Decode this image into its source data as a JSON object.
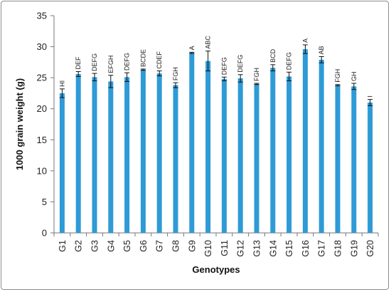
{
  "chart_data": {
    "type": "bar",
    "xlabel": "Genotypes",
    "ylabel": "1000 grain weight (g)",
    "ylim": [
      0,
      35
    ],
    "yticks": [
      0,
      5,
      10,
      15,
      20,
      25,
      30,
      35
    ],
    "grid": false,
    "bar_color": "#2e9bd6",
    "categories": [
      "G1",
      "G2",
      "G3",
      "G4",
      "G5",
      "G6",
      "G7",
      "G8",
      "G9",
      "G10",
      "G11",
      "G12",
      "G13",
      "G14",
      "G15",
      "G16",
      "G17",
      "G18",
      "G19",
      "G20"
    ],
    "values": [
      22.5,
      25.6,
      25.1,
      24.4,
      25.1,
      26.3,
      25.7,
      23.8,
      29.0,
      27.7,
      24.8,
      24.9,
      24.0,
      26.6,
      25.2,
      29.6,
      27.9,
      23.8,
      23.6,
      21.0
    ],
    "errors": [
      0.7,
      0.4,
      0.6,
      1.0,
      0.7,
      0.1,
      0.4,
      0.4,
      0.1,
      1.6,
      0.3,
      0.6,
      0.1,
      0.5,
      0.7,
      0.7,
      0.5,
      0.1,
      0.5,
      0.5
    ],
    "group_labels": [
      "HI",
      "DEF",
      "DEFG",
      "EFGH",
      "DEFG",
      "BCDE",
      "CDEF",
      "FGH",
      "A",
      "ABC",
      "DEFG",
      "DEFG",
      "FGH",
      "BCD",
      "DEFG",
      "A",
      "AB",
      "FGH",
      "GH",
      "I"
    ]
  }
}
